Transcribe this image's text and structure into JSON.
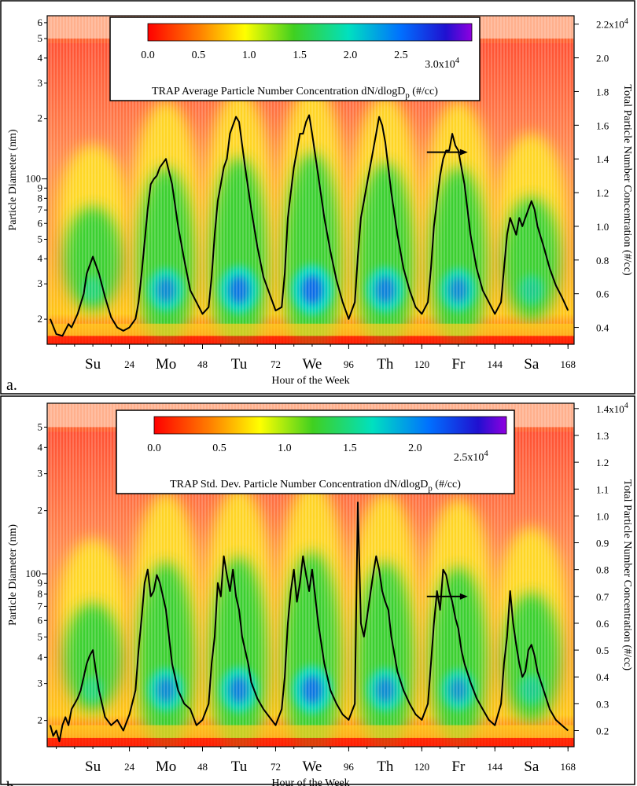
{
  "chart_data": [
    {
      "type": "heatmap",
      "panel_label": "a.",
      "xlabel": "Hour of the Week",
      "ylabel": "Particle Diameter (nm)",
      "y2label": "Total Particle Number Concentration (#/cc)",
      "xlim": [
        -3,
        170
      ],
      "x_ticks": [
        24,
        48,
        72,
        96,
        120,
        144,
        168
      ],
      "x_tick_labels": [
        "24",
        "48",
        "72",
        "96",
        "120",
        "144",
        "168"
      ],
      "day_labels": [
        "Su",
        "Mo",
        "Tu",
        "We",
        "Th",
        "Fr",
        "Sa"
      ],
      "day_centers": [
        12,
        36,
        60,
        84,
        108,
        132,
        156
      ],
      "ylim": [
        15,
        650
      ],
      "y_scale": "log",
      "y_minor_ticks": [
        20,
        30,
        40,
        50,
        60,
        70,
        80,
        90,
        200,
        300,
        400,
        500,
        600
      ],
      "y_minor_labels": [
        "2",
        "3",
        "4",
        "5",
        "6",
        "7",
        "8",
        "9",
        "2",
        "3",
        "4",
        "5",
        "6"
      ],
      "y_major_ticks": [
        100
      ],
      "y_major_labels": [
        "100"
      ],
      "y2lim": [
        0.3,
        2.25
      ],
      "y2_ticks": [
        0.4,
        0.6,
        0.8,
        1.0,
        1.2,
        1.4,
        1.6,
        1.8,
        2.0,
        2.2
      ],
      "y2_tick_labels": [
        "0.4",
        "0.6",
        "0.8",
        "1.0",
        "1.2",
        "1.4",
        "1.6",
        "1.8",
        "2.0",
        "2.2x10^4"
      ],
      "colorbar": {
        "title": "TRAP Average Particle Number Concentration dN/dlogD_p (#/cc)",
        "ticks": [
          0.0,
          0.5,
          1.0,
          1.5,
          2.0,
          2.5,
          3.0
        ],
        "tick_labels": [
          "0.0",
          "0.5",
          "1.0",
          "1.5",
          "2.0",
          "2.5",
          "3.0x10^4"
        ],
        "range": [
          0,
          3.2
        ]
      },
      "arrow_direction": "right",
      "heatmap_peaks": [
        {
          "hour": 12,
          "intensity": 0.45
        },
        {
          "hour": 36,
          "intensity": 0.85
        },
        {
          "hour": 60,
          "intensity": 0.95
        },
        {
          "hour": 84,
          "intensity": 1.0
        },
        {
          "hour": 108,
          "intensity": 0.9
        },
        {
          "hour": 132,
          "intensity": 0.85
        },
        {
          "hour": 156,
          "intensity": 0.55
        }
      ],
      "total_concentration_series": {
        "x": [
          -2,
          0,
          2,
          4,
          5,
          7,
          9,
          10,
          12,
          14,
          16,
          18,
          20,
          22,
          24,
          26,
          27,
          28,
          30,
          31,
          32,
          33,
          34,
          36,
          38,
          40,
          42,
          44,
          46,
          48,
          50,
          51,
          52,
          53,
          54,
          55,
          56,
          57,
          58,
          59,
          60,
          62,
          64,
          66,
          68,
          70,
          72,
          74,
          75,
          76,
          77,
          78,
          79,
          80,
          81,
          82,
          83,
          84,
          86,
          88,
          90,
          92,
          94,
          96,
          98,
          99,
          100,
          101,
          102,
          103,
          104,
          105,
          106,
          107,
          108,
          110,
          112,
          114,
          116,
          118,
          120,
          122,
          123,
          124,
          125,
          126,
          127,
          128,
          129,
          130,
          131,
          132,
          134,
          136,
          138,
          140,
          142,
          144,
          146,
          147,
          148,
          149,
          150,
          151,
          152,
          153,
          154,
          155,
          156,
          157,
          158,
          160,
          162,
          164,
          166,
          168
        ],
        "y": [
          0.45,
          0.36,
          0.35,
          0.42,
          0.4,
          0.48,
          0.6,
          0.72,
          0.82,
          0.72,
          0.58,
          0.46,
          0.4,
          0.38,
          0.4,
          0.45,
          0.55,
          0.72,
          1.1,
          1.25,
          1.28,
          1.3,
          1.35,
          1.4,
          1.25,
          1.0,
          0.8,
          0.62,
          0.55,
          0.48,
          0.52,
          0.7,
          0.95,
          1.15,
          1.25,
          1.35,
          1.4,
          1.55,
          1.6,
          1.65,
          1.62,
          1.35,
          1.1,
          0.88,
          0.7,
          0.6,
          0.5,
          0.52,
          0.72,
          1.05,
          1.2,
          1.35,
          1.45,
          1.55,
          1.55,
          1.62,
          1.66,
          1.55,
          1.3,
          1.05,
          0.85,
          0.68,
          0.55,
          0.45,
          0.55,
          0.82,
          1.05,
          1.15,
          1.25,
          1.35,
          1.45,
          1.55,
          1.65,
          1.6,
          1.5,
          1.2,
          0.95,
          0.75,
          0.62,
          0.52,
          0.48,
          0.55,
          0.75,
          1.0,
          1.15,
          1.3,
          1.4,
          1.45,
          1.45,
          1.55,
          1.48,
          1.45,
          1.25,
          0.95,
          0.75,
          0.62,
          0.55,
          0.48,
          0.55,
          0.75,
          0.95,
          1.05,
          1.0,
          0.95,
          1.05,
          1.0,
          1.05,
          1.1,
          1.15,
          1.1,
          1.0,
          0.88,
          0.75,
          0.65,
          0.58,
          0.5
        ]
      }
    },
    {
      "type": "heatmap",
      "panel_label": "b.",
      "xlabel": "Hour of the Week",
      "ylabel": "Particle Diameter (nm)",
      "y2label": "Total Particle Number Concentration (#/cc)",
      "xlim": [
        -3,
        170
      ],
      "x_ticks": [
        24,
        48,
        72,
        96,
        120,
        144,
        168
      ],
      "x_tick_labels": [
        "24",
        "48",
        "72",
        "96",
        "120",
        "144",
        "168"
      ],
      "day_labels": [
        "Su",
        "Mo",
        "Tu",
        "We",
        "Th",
        "Fr",
        "Sa"
      ],
      "day_centers": [
        12,
        36,
        60,
        84,
        108,
        132,
        156
      ],
      "ylim": [
        15,
        650
      ],
      "y_scale": "log",
      "y_minor_ticks": [
        20,
        30,
        40,
        50,
        60,
        70,
        80,
        90,
        200,
        300,
        400,
        500
      ],
      "y_minor_labels": [
        "2",
        "3",
        "4",
        "5",
        "6",
        "7",
        "8",
        "9",
        "2",
        "3",
        "4",
        "5"
      ],
      "y_major_ticks": [
        100
      ],
      "y_major_labels": [
        "100"
      ],
      "y2lim": [
        0.14,
        1.42
      ],
      "y2_ticks": [
        0.2,
        0.3,
        0.4,
        0.5,
        0.6,
        0.7,
        0.8,
        0.9,
        1.0,
        1.1,
        1.2,
        1.3,
        1.4
      ],
      "y2_tick_labels": [
        "0.2",
        "0.3",
        "0.4",
        "0.5",
        "0.6",
        "0.7",
        "0.8",
        "0.9",
        "1.0",
        "1.1",
        "1.2",
        "1.3",
        "1.4x10^4"
      ],
      "colorbar": {
        "title": "TRAP Std. Dev. Particle Number Concentration dN/dlogD_p (#/cc)",
        "ticks": [
          0.0,
          0.5,
          1.0,
          1.5,
          2.0,
          2.5
        ],
        "tick_labels": [
          "0.0",
          "0.5",
          "1.0",
          "1.5",
          "2.0",
          "2.5x10^4"
        ],
        "range": [
          0,
          2.7
        ]
      },
      "arrow_direction": "right",
      "heatmap_peaks": [
        {
          "hour": 12,
          "intensity": 0.45
        },
        {
          "hour": 36,
          "intensity": 0.85
        },
        {
          "hour": 60,
          "intensity": 0.9
        },
        {
          "hour": 84,
          "intensity": 0.95
        },
        {
          "hour": 108,
          "intensity": 0.85
        },
        {
          "hour": 132,
          "intensity": 0.8
        },
        {
          "hour": 156,
          "intensity": 0.55
        }
      ],
      "total_concentration_series": {
        "x": [
          -2,
          -1,
          0,
          1,
          2,
          3,
          4,
          5,
          6,
          7,
          8,
          9,
          10,
          11,
          12,
          13,
          14,
          15,
          16,
          18,
          20,
          22,
          24,
          26,
          27,
          28,
          29,
          30,
          31,
          32,
          33,
          34,
          35,
          36,
          37,
          38,
          40,
          42,
          44,
          46,
          48,
          50,
          51,
          52,
          53,
          54,
          55,
          56,
          57,
          58,
          59,
          60,
          61,
          62,
          63,
          64,
          66,
          68,
          70,
          72,
          74,
          75,
          76,
          77,
          78,
          79,
          80,
          81,
          82,
          83,
          84,
          85,
          86,
          88,
          90,
          92,
          94,
          96,
          98,
          99,
          100,
          101,
          102,
          103,
          104,
          105,
          106,
          107,
          108,
          109,
          110,
          112,
          114,
          116,
          118,
          120,
          122,
          123,
          124,
          125,
          126,
          127,
          128,
          129,
          130,
          131,
          132,
          133,
          134,
          136,
          138,
          140,
          142,
          144,
          146,
          147,
          148,
          149,
          150,
          151,
          152,
          153,
          154,
          155,
          156,
          157,
          158,
          160,
          162,
          164,
          166,
          168
        ],
        "y": [
          0.22,
          0.18,
          0.2,
          0.16,
          0.22,
          0.25,
          0.22,
          0.28,
          0.3,
          0.32,
          0.35,
          0.4,
          0.45,
          0.48,
          0.5,
          0.42,
          0.35,
          0.3,
          0.25,
          0.22,
          0.24,
          0.2,
          0.26,
          0.35,
          0.5,
          0.62,
          0.75,
          0.8,
          0.7,
          0.72,
          0.78,
          0.75,
          0.7,
          0.65,
          0.55,
          0.45,
          0.35,
          0.3,
          0.28,
          0.22,
          0.24,
          0.3,
          0.45,
          0.55,
          0.75,
          0.7,
          0.85,
          0.78,
          0.72,
          0.8,
          0.7,
          0.65,
          0.55,
          0.5,
          0.45,
          0.38,
          0.32,
          0.28,
          0.25,
          0.22,
          0.28,
          0.4,
          0.6,
          0.72,
          0.8,
          0.68,
          0.75,
          0.85,
          0.78,
          0.72,
          0.8,
          0.7,
          0.6,
          0.45,
          0.35,
          0.3,
          0.26,
          0.24,
          0.3,
          1.05,
          0.6,
          0.55,
          0.62,
          0.7,
          0.78,
          0.85,
          0.8,
          0.72,
          0.68,
          0.65,
          0.55,
          0.42,
          0.35,
          0.3,
          0.26,
          0.24,
          0.3,
          0.45,
          0.6,
          0.72,
          0.65,
          0.8,
          0.78,
          0.72,
          0.68,
          0.62,
          0.58,
          0.5,
          0.45,
          0.38,
          0.32,
          0.28,
          0.24,
          0.22,
          0.3,
          0.45,
          0.55,
          0.72,
          0.6,
          0.52,
          0.45,
          0.4,
          0.42,
          0.5,
          0.52,
          0.48,
          0.42,
          0.35,
          0.28,
          0.24,
          0.22,
          0.2
        ]
      }
    }
  ]
}
